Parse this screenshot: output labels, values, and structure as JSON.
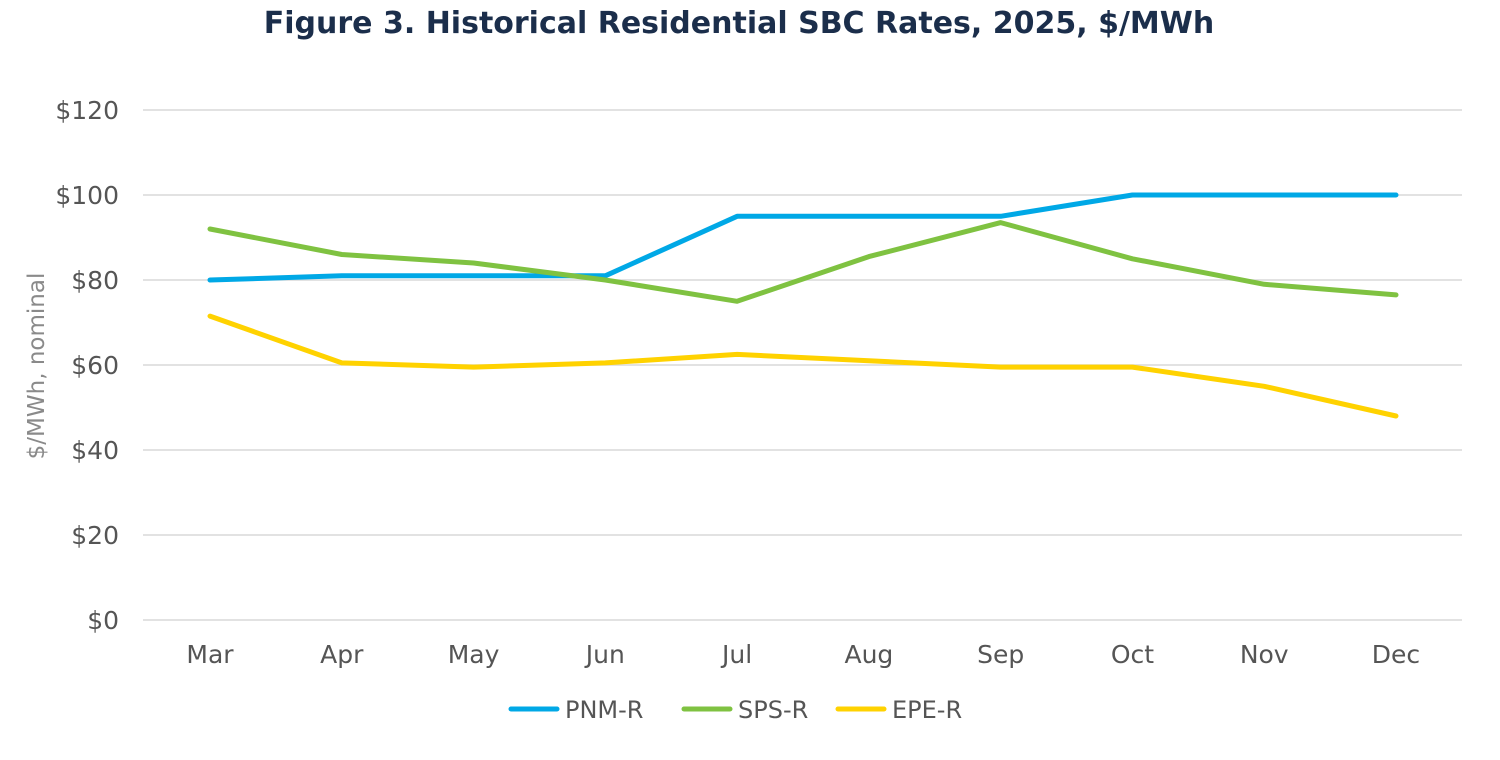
{
  "chart_data": {
    "type": "line",
    "title": "Figure 3. Historical Residential SBC Rates, 2025, $/MWh",
    "xlabel": "",
    "ylabel": "$/MWh, nominal",
    "categories": [
      "Mar",
      "Apr",
      "May",
      "Jun",
      "Jul",
      "Aug",
      "Sep",
      "Oct",
      "Nov",
      "Dec"
    ],
    "yticks": [
      0,
      20,
      40,
      60,
      80,
      100,
      120
    ],
    "ytick_labels": [
      "$0",
      "$20",
      "$40",
      "$60",
      "$80",
      "$100",
      "$120"
    ],
    "ylim": [
      0,
      120
    ],
    "grid": true,
    "legend_position": "bottom",
    "series": [
      {
        "name": "PNM-R",
        "color": "#00a8e6",
        "values": [
          80,
          81,
          81,
          81,
          95,
          95,
          95,
          100,
          100,
          100
        ]
      },
      {
        "name": "SPS-R",
        "color": "#7fc241",
        "values": [
          92,
          86,
          84,
          80,
          75,
          85.5,
          93.5,
          85,
          79,
          76.5
        ]
      },
      {
        "name": "EPE-R",
        "color": "#ffd200",
        "values": [
          71.5,
          60.5,
          59.5,
          60.5,
          62.5,
          61,
          59.5,
          59.5,
          55,
          48
        ]
      }
    ]
  }
}
